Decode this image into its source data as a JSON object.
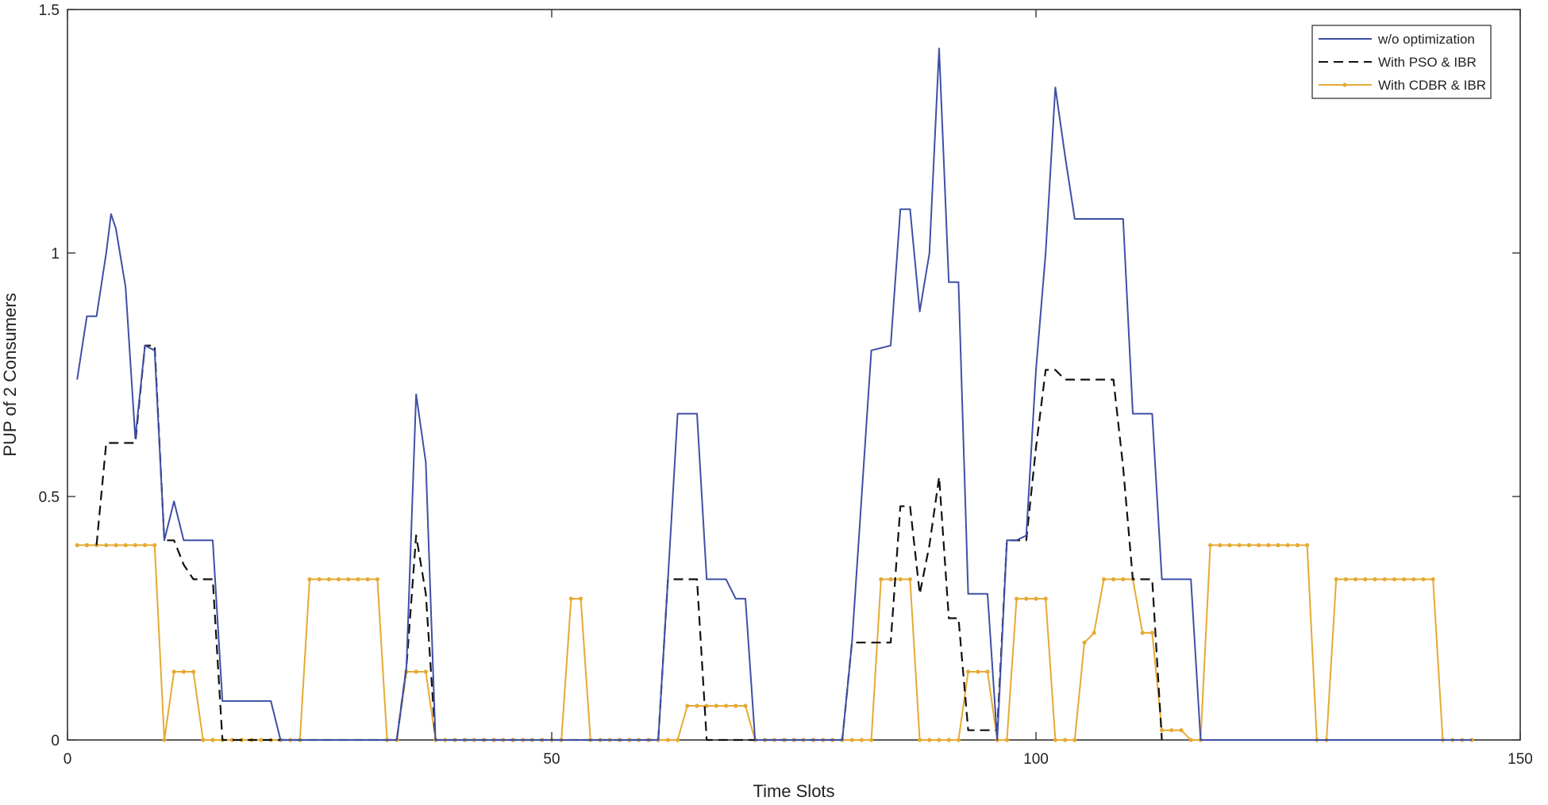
{
  "chart_data": {
    "type": "line",
    "title": "",
    "xlabel": "Time Slots",
    "ylabel": "PUP of 2 Consumers",
    "xlim": [
      0,
      150
    ],
    "ylim": [
      0,
      1.5
    ],
    "xticks": [
      0,
      50,
      100,
      150
    ],
    "yticks": [
      0,
      0.5,
      1,
      1.5
    ],
    "xtick_labels": [
      "0",
      "50",
      "100",
      "150"
    ],
    "ytick_labels": [
      "0",
      "0.5",
      "1",
      "1.5"
    ],
    "grid": false,
    "legend_position": "top-right",
    "series": [
      {
        "name": "w/o optimization",
        "color": "#3f4fa6",
        "style": "solid",
        "points": [
          [
            1,
            0.74
          ],
          [
            2,
            0.87
          ],
          [
            3,
            0.87
          ],
          [
            4,
            1.0
          ],
          [
            4.5,
            1.08
          ],
          [
            5,
            1.05
          ],
          [
            6,
            0.93
          ],
          [
            7,
            0.62
          ],
          [
            8,
            0.81
          ],
          [
            9,
            0.8
          ],
          [
            10,
            0.41
          ],
          [
            11,
            0.49
          ],
          [
            12,
            0.41
          ],
          [
            13,
            0.41
          ],
          [
            14,
            0.41
          ],
          [
            15,
            0.41
          ],
          [
            16,
            0.08
          ],
          [
            17,
            0.08
          ],
          [
            20,
            0.08
          ],
          [
            21,
            0.08
          ],
          [
            22,
            0.0
          ],
          [
            23,
            0.0
          ],
          [
            34,
            0.0
          ],
          [
            35,
            0.15
          ],
          [
            36,
            0.71
          ],
          [
            37,
            0.57
          ],
          [
            38,
            0.0
          ],
          [
            61,
            0.0
          ],
          [
            62,
            0.33
          ],
          [
            63,
            0.67
          ],
          [
            65,
            0.67
          ],
          [
            66,
            0.33
          ],
          [
            68,
            0.33
          ],
          [
            69,
            0.29
          ],
          [
            70,
            0.29
          ],
          [
            71,
            0.0
          ],
          [
            80,
            0.0
          ],
          [
            81,
            0.2
          ],
          [
            83,
            0.8
          ],
          [
            85,
            0.81
          ],
          [
            86,
            1.09
          ],
          [
            87,
            1.09
          ],
          [
            88,
            0.88
          ],
          [
            89,
            1.0
          ],
          [
            90,
            1.42
          ],
          [
            91,
            0.94
          ],
          [
            92,
            0.94
          ],
          [
            93,
            0.3
          ],
          [
            94,
            0.3
          ],
          [
            95,
            0.3
          ],
          [
            96,
            0.0
          ],
          [
            97,
            0.41
          ],
          [
            98,
            0.41
          ],
          [
            99,
            0.42
          ],
          [
            100,
            0.76
          ],
          [
            101,
            1.0
          ],
          [
            102,
            1.34
          ],
          [
            103,
            1.2
          ],
          [
            104,
            1.07
          ],
          [
            105,
            1.07
          ],
          [
            108,
            1.07
          ],
          [
            109,
            1.07
          ],
          [
            110,
            0.67
          ],
          [
            111,
            0.67
          ],
          [
            112,
            0.67
          ],
          [
            113,
            0.33
          ],
          [
            114,
            0.33
          ],
          [
            115,
            0.33
          ],
          [
            116,
            0.33
          ],
          [
            117,
            0.0
          ],
          [
            145,
            0.0
          ]
        ]
      },
      {
        "name": "With PSO & IBR",
        "color": "#111111",
        "style": "dashed",
        "points": [
          [
            3,
            0.4
          ],
          [
            4,
            0.61
          ],
          [
            5,
            0.61
          ],
          [
            6,
            0.61
          ],
          [
            7,
            0.61
          ],
          [
            8,
            0.81
          ],
          [
            9,
            0.81
          ],
          [
            10,
            0.41
          ],
          [
            11,
            0.41
          ],
          [
            12,
            0.36
          ],
          [
            13,
            0.33
          ],
          [
            14,
            0.33
          ],
          [
            15,
            0.33
          ],
          [
            16,
            0.0
          ],
          [
            34,
            0.0
          ],
          [
            35,
            0.15
          ],
          [
            36,
            0.42
          ],
          [
            37,
            0.3
          ],
          [
            38,
            0.0
          ],
          [
            61,
            0.0
          ],
          [
            62,
            0.33
          ],
          [
            65,
            0.33
          ],
          [
            66,
            0.0
          ],
          [
            67,
            0.0
          ],
          [
            80,
            0.0
          ],
          [
            81,
            0.2
          ],
          [
            84,
            0.2
          ],
          [
            85,
            0.2
          ],
          [
            86,
            0.48
          ],
          [
            87,
            0.48
          ],
          [
            88,
            0.3
          ],
          [
            89,
            0.4
          ],
          [
            90,
            0.54
          ],
          [
            91,
            0.25
          ],
          [
            92,
            0.25
          ],
          [
            93,
            0.02
          ],
          [
            94,
            0.02
          ],
          [
            95,
            0.02
          ],
          [
            96,
            0.02
          ],
          [
            97,
            0.41
          ],
          [
            98,
            0.41
          ],
          [
            99,
            0.41
          ],
          [
            100,
            0.6
          ],
          [
            101,
            0.76
          ],
          [
            102,
            0.76
          ],
          [
            103,
            0.74
          ],
          [
            108,
            0.74
          ],
          [
            109,
            0.56
          ],
          [
            110,
            0.33
          ],
          [
            111,
            0.33
          ],
          [
            112,
            0.33
          ],
          [
            113,
            0.0
          ]
        ]
      },
      {
        "name": "With CDBR & IBR",
        "color": "#e6aa33",
        "style": "solid-marker",
        "points": [
          [
            1,
            0.4
          ],
          [
            9,
            0.4
          ],
          [
            10,
            0.0
          ],
          [
            11,
            0.14
          ],
          [
            12,
            0.14
          ],
          [
            13,
            0.14
          ],
          [
            14,
            0.0
          ],
          [
            23,
            0.0
          ],
          [
            24,
            0.0
          ],
          [
            25,
            0.33
          ],
          [
            32,
            0.33
          ],
          [
            33,
            0.0
          ],
          [
            34,
            0.0
          ],
          [
            35,
            0.14
          ],
          [
            36,
            0.14
          ],
          [
            37,
            0.14
          ],
          [
            38,
            0.0
          ],
          [
            51,
            0.0
          ],
          [
            52,
            0.29
          ],
          [
            53,
            0.29
          ],
          [
            54,
            0.0
          ],
          [
            63,
            0.0
          ],
          [
            64,
            0.07
          ],
          [
            70,
            0.07
          ],
          [
            71,
            0.0
          ],
          [
            83,
            0.0
          ],
          [
            84,
            0.33
          ],
          [
            87,
            0.33
          ],
          [
            88,
            0.0
          ],
          [
            92,
            0.0
          ],
          [
            93,
            0.14
          ],
          [
            94,
            0.14
          ],
          [
            95,
            0.14
          ],
          [
            96,
            0.0
          ],
          [
            97,
            0.0
          ],
          [
            98,
            0.29
          ],
          [
            101,
            0.29
          ],
          [
            102,
            0.0
          ],
          [
            104,
            0.0
          ],
          [
            105,
            0.2
          ],
          [
            106,
            0.22
          ],
          [
            107,
            0.33
          ],
          [
            109,
            0.33
          ],
          [
            110,
            0.33
          ],
          [
            111,
            0.22
          ],
          [
            112,
            0.22
          ],
          [
            113,
            0.02
          ],
          [
            114,
            0.02
          ],
          [
            115,
            0.02
          ],
          [
            116,
            0.0
          ],
          [
            117,
            0.0
          ],
          [
            118,
            0.4
          ],
          [
            128,
            0.4
          ],
          [
            129,
            0.0
          ],
          [
            130,
            0.0
          ],
          [
            131,
            0.33
          ],
          [
            141,
            0.33
          ],
          [
            142,
            0.0
          ],
          [
            145,
            0.0
          ]
        ]
      }
    ]
  }
}
